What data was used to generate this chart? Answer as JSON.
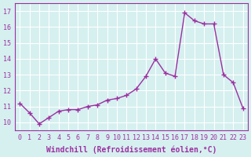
{
  "x": [
    0,
    1,
    2,
    3,
    4,
    5,
    6,
    7,
    8,
    9,
    10,
    11,
    12,
    13,
    14,
    15,
    16,
    17,
    18,
    19,
    20,
    21,
    22,
    23
  ],
  "y": [
    11.2,
    10.6,
    9.9,
    10.3,
    10.7,
    10.8,
    10.8,
    11.0,
    11.1,
    11.4,
    11.5,
    11.7,
    12.1,
    12.9,
    14.0,
    13.1,
    12.9,
    16.9,
    16.4,
    16.2,
    16.2,
    13.0,
    12.5,
    10.9
  ],
  "line_color": "#9B30A0",
  "marker": "+",
  "markersize": 4,
  "linewidth": 1.0,
  "xlabel": "Windchill (Refroidissement éolien,°C)",
  "xlabel_fontsize": 7,
  "ylabel_ticks": [
    10,
    11,
    12,
    13,
    14,
    15,
    16,
    17
  ],
  "xtick_labels": [
    "0",
    "1",
    "2",
    "3",
    "4",
    "5",
    "6",
    "7",
    "8",
    "9",
    "10",
    "11",
    "12",
    "13",
    "14",
    "15",
    "16",
    "17",
    "18",
    "19",
    "20",
    "21",
    "22",
    "23"
  ],
  "ylim": [
    9.5,
    17.5
  ],
  "xlim": [
    -0.5,
    23.5
  ],
  "background_color": "#d6f0f0",
  "grid_color": "#ffffff",
  "tick_color": "#9B30A0",
  "tick_fontsize": 6
}
